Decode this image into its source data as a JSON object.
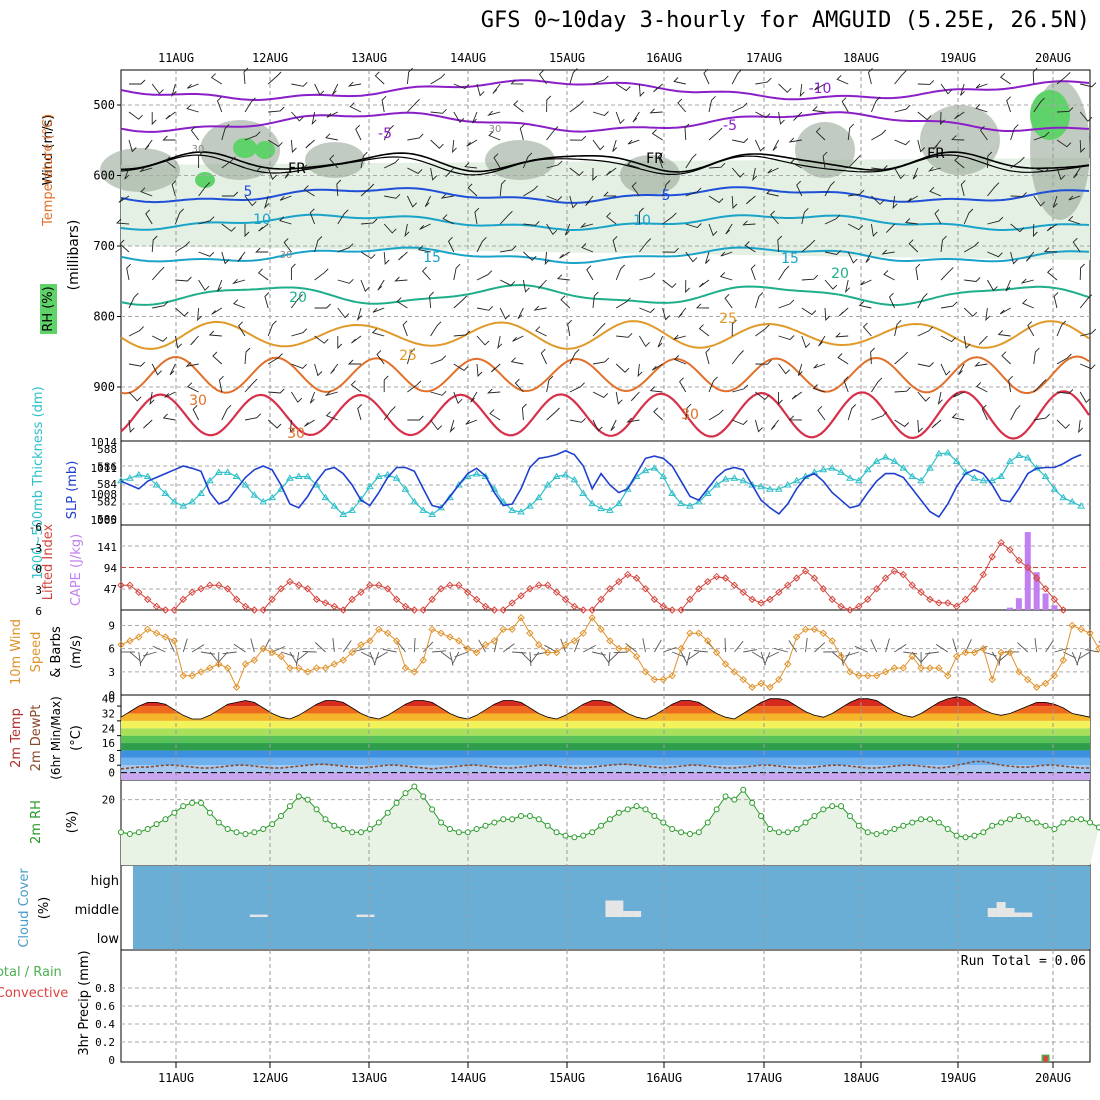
{
  "title": "GFS 0~10day 3-hourly for AMGUID (5.25E, 26.5N)",
  "date_labels": [
    "11AUG",
    "12AUG",
    "13AUG",
    "14AUG",
    "15AUG",
    "16AUG",
    "17AUG",
    "18AUG",
    "19AUG",
    "20AUG"
  ],
  "colors": {
    "temp_cold": "#8a1fc7",
    "temp_blue": "#1f4fd8",
    "temp_teal": "#1aa3c9",
    "temp_green": "#1fae8c",
    "temp_orange": "#e09a2a",
    "temp_dorange": "#e0702a",
    "temp_red": "#d6304a",
    "rh_green": "#5fd36a",
    "rh_gray": "#9aa89a",
    "rh_light": "#e3f0e3",
    "slp": "#1f3fcf",
    "thickness": "#2fbfc9",
    "lifted": "#d6453d",
    "cape": "#c080f0",
    "wind10": "#e0922a",
    "rh2m": "#2a9a2a",
    "cloud": "#6aaed6",
    "precip_total": "#4caf50",
    "precip_conv": "#e04040"
  },
  "panels": {
    "upper": {
      "ylabel_wind": "Wind (m/s)",
      "ylabel_temp": "Temperature (°C)",
      "ylabel_rh": "RH (%)",
      "ylabel_mb": "(millibars)",
      "yticks": [
        "500",
        "600",
        "700",
        "800",
        "900"
      ],
      "contour_labels": [
        "-10",
        "-5",
        "-5",
        "FR",
        "FR",
        "FR",
        "5",
        "5",
        "10",
        "10",
        "15",
        "15",
        "20",
        "20",
        "25",
        "25",
        "30",
        "30",
        "30",
        "30",
        "30",
        "30"
      ]
    },
    "slp": {
      "ylabel_thick": "1000~500mb Thickness (dm)",
      "ylabel_slp": "SLP (mb)",
      "left_ticks": [
        "588",
        "586",
        "584",
        "582",
        "580"
      ],
      "right_ticks": [
        "1014",
        "1011",
        "1008",
        "1005"
      ]
    },
    "cape": {
      "ylabel_li": "Lifted Index",
      "ylabel_cape": "CAPE (J/kg)",
      "left_ticks": [
        "-6",
        "-3",
        "0",
        "3",
        "6"
      ],
      "right_ticks": [
        "141",
        "94",
        "47"
      ]
    },
    "wind10": {
      "ylabel_a": "10m Wind",
      "ylabel_b": "Speed",
      "ylabel_c": "& Barbs",
      "ylabel_unit": "(m/s)",
      "ticks": [
        "9",
        "6",
        "3",
        "0"
      ]
    },
    "temp2m": {
      "ylabel_a": "2m Temp",
      "ylabel_b": "2m DewPt",
      "ylabel_c": "(6hr Min/Max)",
      "ylabel_unit": "(°C)",
      "ticks": [
        "40",
        "32",
        "24",
        "16",
        "8",
        "0"
      ],
      "minor_ticks": [
        "36",
        "28",
        "20",
        "12",
        "4"
      ]
    },
    "rh2m": {
      "ylabel": "2m RH",
      "ylabel_unit": "(%)",
      "ticks": [
        "20"
      ]
    },
    "cloud": {
      "ylabel": "Cloud Cover",
      "ylabel_unit": "(%)",
      "levels": [
        "high",
        "middle",
        "low"
      ]
    },
    "precip": {
      "ylabel_a": "Total / Rain",
      "ylabel_b": "Convective",
      "ylabel_c": "3hr Precip (mm)",
      "ticks": [
        "0.8",
        "0.6",
        "0.4",
        "0.2",
        "0"
      ],
      "run_total": "Run Total = 0.06"
    }
  },
  "chart_data": [
    {
      "type": "line",
      "name_ref": "slp",
      "x_start": "10AUG 12Z",
      "x_step_hours": 3,
      "ylim": [
        1004,
        1014
      ],
      "values": [
        1009.5,
        1009,
        1008.5,
        1009.5,
        1010,
        1010.5,
        1011,
        1011.5,
        1011.2,
        1010.8,
        1008,
        1006.5,
        1007,
        1008.5,
        1010,
        1011,
        1011.5,
        1011,
        1009,
        1006.5,
        1006,
        1007.5,
        1009.5,
        1011,
        1011.3,
        1010.5,
        1009,
        1007,
        1006.3,
        1008,
        1010,
        1011.3,
        1011.3,
        1010.8,
        1008.5,
        1006.3,
        1006,
        1007.5,
        1009,
        1010.5,
        1011.2,
        1010.2,
        1008,
        1006.3,
        1006.5,
        1008.5,
        1011.3,
        1012.5,
        1012.7,
        1013,
        1013.5,
        1013,
        1011.5,
        1008.5,
        1010.5,
        1009,
        1008,
        1008.5,
        1010.5,
        1012.5,
        1012.8,
        1012.5,
        1011.5,
        1009.5,
        1007.5,
        1007,
        1008.5,
        1010,
        1011,
        1011.3,
        1011,
        1009,
        1007,
        1006,
        1005.2,
        1006.5,
        1008.5,
        1010,
        1010.5,
        1009.5,
        1008,
        1007,
        1006,
        1006.3,
        1008,
        1009.5,
        1010.5,
        1010.5,
        1010,
        1008.5,
        1007,
        1005.5,
        1004.8,
        1006.5,
        1008.8,
        1010.5,
        1011,
        1010.5,
        1009,
        1007,
        1006.8,
        1008.5,
        1010.5,
        1011.2,
        1011.3,
        1011.3,
        1011.8,
        1012.5,
        1013
      ]
    },
    {
      "type": "line",
      "name_ref": "thickness",
      "ylim": [
        579.5,
        588.5
      ],
      "values": [
        584.5,
        584.8,
        585.2,
        585,
        584,
        583,
        582,
        581.5,
        582,
        583,
        584.5,
        585.5,
        585.5,
        585,
        584,
        582.8,
        582,
        582.5,
        583.5,
        584.8,
        585,
        585,
        584,
        582.5,
        581.5,
        580.5,
        581,
        582.3,
        583.8,
        585,
        585.2,
        584.8,
        583.5,
        582,
        581,
        580.5,
        581.3,
        582.5,
        584,
        585,
        585.3,
        585,
        583.5,
        582,
        581,
        580.8,
        581.5,
        582.5,
        584,
        585,
        585.2,
        584.6,
        583,
        581.8,
        581.2,
        581,
        581.8,
        583.5,
        585,
        585.7,
        586,
        585,
        583,
        581.8,
        581.5,
        582,
        583,
        584,
        584.7,
        584.8,
        584.5,
        584,
        583.8,
        583.5,
        583.5,
        584,
        584.5,
        585,
        585.5,
        585.8,
        586,
        585.5,
        584.8,
        584.5,
        585.8,
        586.8,
        587.3,
        586.8,
        586,
        585,
        584.5,
        586,
        587.7,
        587.8,
        586.8,
        585.5,
        584.8,
        584.5,
        584.5,
        585,
        586.8,
        587.5,
        587.2,
        586,
        585,
        583.5,
        582.5,
        582,
        581.5
      ]
    },
    {
      "type": "line",
      "name_ref": "lifted_index",
      "ylim": [
        6,
        -6
      ],
      "values": [
        2.5,
        2.5,
        3.5,
        4.5,
        5.5,
        6,
        6,
        4.5,
        3.5,
        3,
        2.5,
        2.5,
        3,
        4.5,
        5.5,
        6,
        6,
        4.5,
        3,
        2,
        2.5,
        3,
        4.5,
        5,
        5.5,
        6,
        4.5,
        3.5,
        2.5,
        2.5,
        3,
        4.5,
        5.5,
        6,
        6,
        4.5,
        3,
        2.5,
        2.5,
        3.5,
        4.5,
        5.5,
        6,
        6,
        5,
        4,
        3,
        2.5,
        2.5,
        3.5,
        4.5,
        5.5,
        6,
        6,
        4.5,
        3,
        2,
        1,
        1.5,
        3,
        4.5,
        5.5,
        6,
        6,
        4.5,
        3,
        2,
        1.3,
        1.5,
        2.5,
        3.5,
        4.5,
        5,
        4.5,
        3.5,
        2.5,
        1.5,
        0.5,
        1.5,
        3,
        4.5,
        5.5,
        6,
        5.5,
        4.5,
        3,
        1.5,
        0.5,
        1,
        2.5,
        3.5,
        4.5,
        5,
        5,
        5.5,
        4.5,
        3,
        1,
        -1.5,
        -3.5,
        -2.5,
        -1,
        0,
        1.5,
        3,
        4.5,
        6
      ]
    },
    {
      "type": "bar",
      "name_ref": "cape",
      "ylim": [
        0,
        180
      ],
      "values": [
        0,
        0,
        0,
        0,
        0,
        0,
        0,
        0,
        0,
        0,
        0,
        0,
        0,
        0,
        0,
        0,
        0,
        0,
        0,
        0,
        0,
        0,
        0,
        0,
        0,
        0,
        0,
        0,
        0,
        0,
        0,
        0,
        0,
        0,
        0,
        0,
        0,
        0,
        0,
        0,
        0,
        0,
        0,
        0,
        0,
        0,
        0,
        0,
        0,
        0,
        0,
        0,
        0,
        0,
        0,
        0,
        0,
        0,
        0,
        0,
        0,
        0,
        0,
        0,
        0,
        0,
        0,
        0,
        0,
        0,
        0,
        0,
        0,
        0,
        0,
        0,
        0,
        0,
        0,
        0,
        0,
        0,
        0,
        0,
        0,
        0,
        0,
        0,
        0,
        0,
        0,
        0,
        0,
        0,
        0,
        0,
        0,
        0,
        0,
        0,
        5,
        25,
        165,
        80,
        35,
        10,
        0,
        0,
        0,
        0
      ]
    },
    {
      "type": "line",
      "name_ref": "wind10m",
      "ylim": [
        0,
        11
      ],
      "values": [
        6.5,
        7,
        7.5,
        8.5,
        8,
        7.5,
        7,
        2.5,
        2.5,
        3,
        3.5,
        4,
        3.5,
        1,
        4,
        4.5,
        6,
        5.5,
        5,
        3.5,
        3.5,
        3,
        3.5,
        3.5,
        4,
        4.5,
        5.5,
        6.5,
        7,
        8.5,
        8,
        7,
        3.5,
        3,
        4.5,
        8.5,
        8,
        7.5,
        7,
        6,
        5.5,
        6.5,
        7,
        8.5,
        8.5,
        10,
        8,
        6.5,
        5.5,
        5.5,
        6.5,
        7,
        8,
        10,
        8.5,
        7,
        6,
        6,
        5,
        3,
        2,
        2,
        2.5,
        6,
        8,
        8,
        7,
        5.5,
        4,
        3,
        2,
        1,
        1.5,
        1,
        2,
        4,
        7.5,
        8.5,
        8.5,
        8,
        7,
        5,
        3,
        2.5,
        2.5,
        2.5,
        3,
        3.5,
        3.5,
        5,
        3.5,
        3.5,
        3.5,
        2.5,
        5,
        5.5,
        5.5,
        6,
        2,
        5.5,
        5.5,
        3,
        2,
        1,
        1.5,
        2.5,
        4.5,
        9,
        8.5,
        8,
        6,
        5,
        4
      ]
    },
    {
      "type": "area",
      "name_ref": "temp2m",
      "ylim": [
        -4,
        42
      ],
      "values": [
        30,
        33,
        36,
        38,
        38,
        37,
        34,
        31,
        29,
        29,
        31,
        34,
        37,
        38,
        39,
        38,
        35,
        32,
        30,
        29,
        31,
        34,
        37,
        39,
        39,
        38,
        35,
        32,
        30,
        29,
        31,
        34,
        37,
        39,
        39,
        38,
        35,
        32,
        30,
        29,
        31,
        34,
        37,
        39,
        39,
        38,
        35,
        32,
        30,
        29,
        31,
        34,
        37,
        39,
        39,
        38,
        35,
        32,
        30,
        29,
        31,
        34,
        37,
        39,
        39,
        38,
        35,
        32,
        30,
        29,
        32,
        35,
        38,
        40,
        40,
        39,
        36,
        33,
        31,
        30,
        32,
        35,
        38,
        40,
        40,
        39,
        36,
        33,
        31,
        30,
        32,
        35,
        38,
        40,
        41,
        40,
        37,
        34,
        32,
        31,
        32,
        34,
        36,
        38,
        38,
        37,
        35,
        32,
        31,
        30
      ]
    },
    {
      "type": "line",
      "name_ref": "dewpt2m",
      "ylim": [
        -4,
        42
      ],
      "values": [
        2,
        2.5,
        3,
        3,
        3.5,
        4,
        4,
        3.5,
        3,
        2.5,
        2.5,
        3,
        3.5,
        4,
        4,
        3.5,
        3,
        2.5,
        2.5,
        3,
        3.5,
        4,
        4.5,
        4.5,
        4,
        3.5,
        3,
        2.5,
        3,
        3.5,
        4,
        4,
        3.5,
        3,
        2.5,
        2,
        2.5,
        3,
        3.5,
        4,
        4,
        3.5,
        3,
        2.5,
        2.5,
        3,
        3.5,
        4,
        4,
        3.5,
        3,
        2.5,
        2.5,
        3,
        3.5,
        4,
        4.5,
        4.5,
        4,
        3.5,
        3,
        2.5,
        3,
        3.5,
        4,
        4,
        3.5,
        3,
        2.5,
        2.5,
        3,
        3.5,
        4,
        4,
        3.5,
        3,
        2.5,
        2.5,
        3,
        3.5,
        4,
        4,
        3.5,
        3,
        2.5,
        2.5,
        3,
        3.5,
        4,
        4,
        3.5,
        3,
        2.5,
        3,
        4,
        5,
        6,
        6,
        5,
        4,
        3.5,
        3,
        3,
        3.5,
        4,
        4,
        3.5,
        3,
        2.5,
        2.5
      ]
    },
    {
      "type": "line",
      "name_ref": "rh2m",
      "ylim": [
        0,
        26
      ],
      "values": [
        10,
        9.5,
        10,
        11,
        12.5,
        14,
        16,
        18,
        19,
        19,
        16,
        13,
        11,
        10,
        9.5,
        10,
        11,
        12.5,
        15,
        18,
        21,
        20,
        17,
        14,
        12,
        11,
        10,
        10,
        11,
        13,
        16,
        19,
        22,
        24,
        21,
        17,
        13,
        11,
        10,
        10,
        11,
        12,
        13,
        14,
        14,
        15,
        15,
        14,
        12,
        10,
        9,
        8.5,
        9,
        10,
        12,
        14,
        16,
        17,
        18,
        17,
        15,
        13,
        11,
        10,
        9.5,
        10,
        13,
        17,
        21,
        20,
        23,
        19,
        15,
        11,
        10,
        10,
        11,
        13,
        15,
        17,
        18,
        18,
        15,
        12,
        10,
        9.5,
        10,
        11,
        12,
        13,
        14,
        14,
        13,
        11,
        9,
        8.5,
        9,
        10,
        12,
        13,
        14,
        15,
        14,
        13,
        12,
        11,
        13,
        14,
        14,
        13,
        11.5
      ]
    },
    {
      "type": "bar",
      "name_ref": "cloud_middle",
      "ylim": [
        0,
        100
      ],
      "values": [
        0,
        0,
        0,
        0,
        0,
        0,
        0,
        0,
        0,
        0,
        0,
        0,
        0,
        0,
        0,
        8,
        8,
        0,
        0,
        0,
        0,
        0,
        0,
        0,
        0,
        0,
        0,
        8,
        8,
        0,
        0,
        0,
        0,
        0,
        0,
        0,
        0,
        0,
        0,
        0,
        0,
        0,
        0,
        0,
        0,
        0,
        0,
        0,
        0,
        0,
        0,
        0,
        0,
        0,
        0,
        55,
        55,
        20,
        20,
        0,
        0,
        0,
        0,
        0,
        0,
        0,
        0,
        0,
        0,
        0,
        0,
        0,
        0,
        0,
        0,
        0,
        0,
        0,
        0,
        0,
        0,
        0,
        0,
        0,
        0,
        0,
        0,
        0,
        0,
        0,
        0,
        0,
        0,
        0,
        0,
        0,
        0,
        0,
        30,
        50,
        30,
        15,
        15,
        0,
        0,
        0,
        0,
        0,
        0,
        0
      ]
    },
    {
      "type": "bar",
      "name_ref": "precip",
      "ylim": [
        0,
        1
      ],
      "values": [
        0,
        0,
        0,
        0,
        0,
        0,
        0,
        0,
        0,
        0,
        0,
        0,
        0,
        0,
        0,
        0,
        0,
        0,
        0,
        0,
        0,
        0,
        0,
        0,
        0,
        0,
        0,
        0,
        0,
        0,
        0,
        0,
        0,
        0,
        0,
        0,
        0,
        0,
        0,
        0,
        0,
        0,
        0,
        0,
        0,
        0,
        0,
        0,
        0,
        0,
        0,
        0,
        0,
        0,
        0,
        0,
        0,
        0,
        0,
        0,
        0,
        0,
        0,
        0,
        0,
        0,
        0,
        0,
        0,
        0,
        0,
        0,
        0,
        0,
        0,
        0,
        0,
        0,
        0,
        0,
        0,
        0,
        0,
        0,
        0,
        0,
        0,
        0,
        0,
        0,
        0,
        0,
        0,
        0,
        0,
        0,
        0,
        0,
        0,
        0,
        0,
        0,
        0,
        0,
        0.06,
        0,
        0,
        0,
        0,
        0
      ]
    }
  ]
}
